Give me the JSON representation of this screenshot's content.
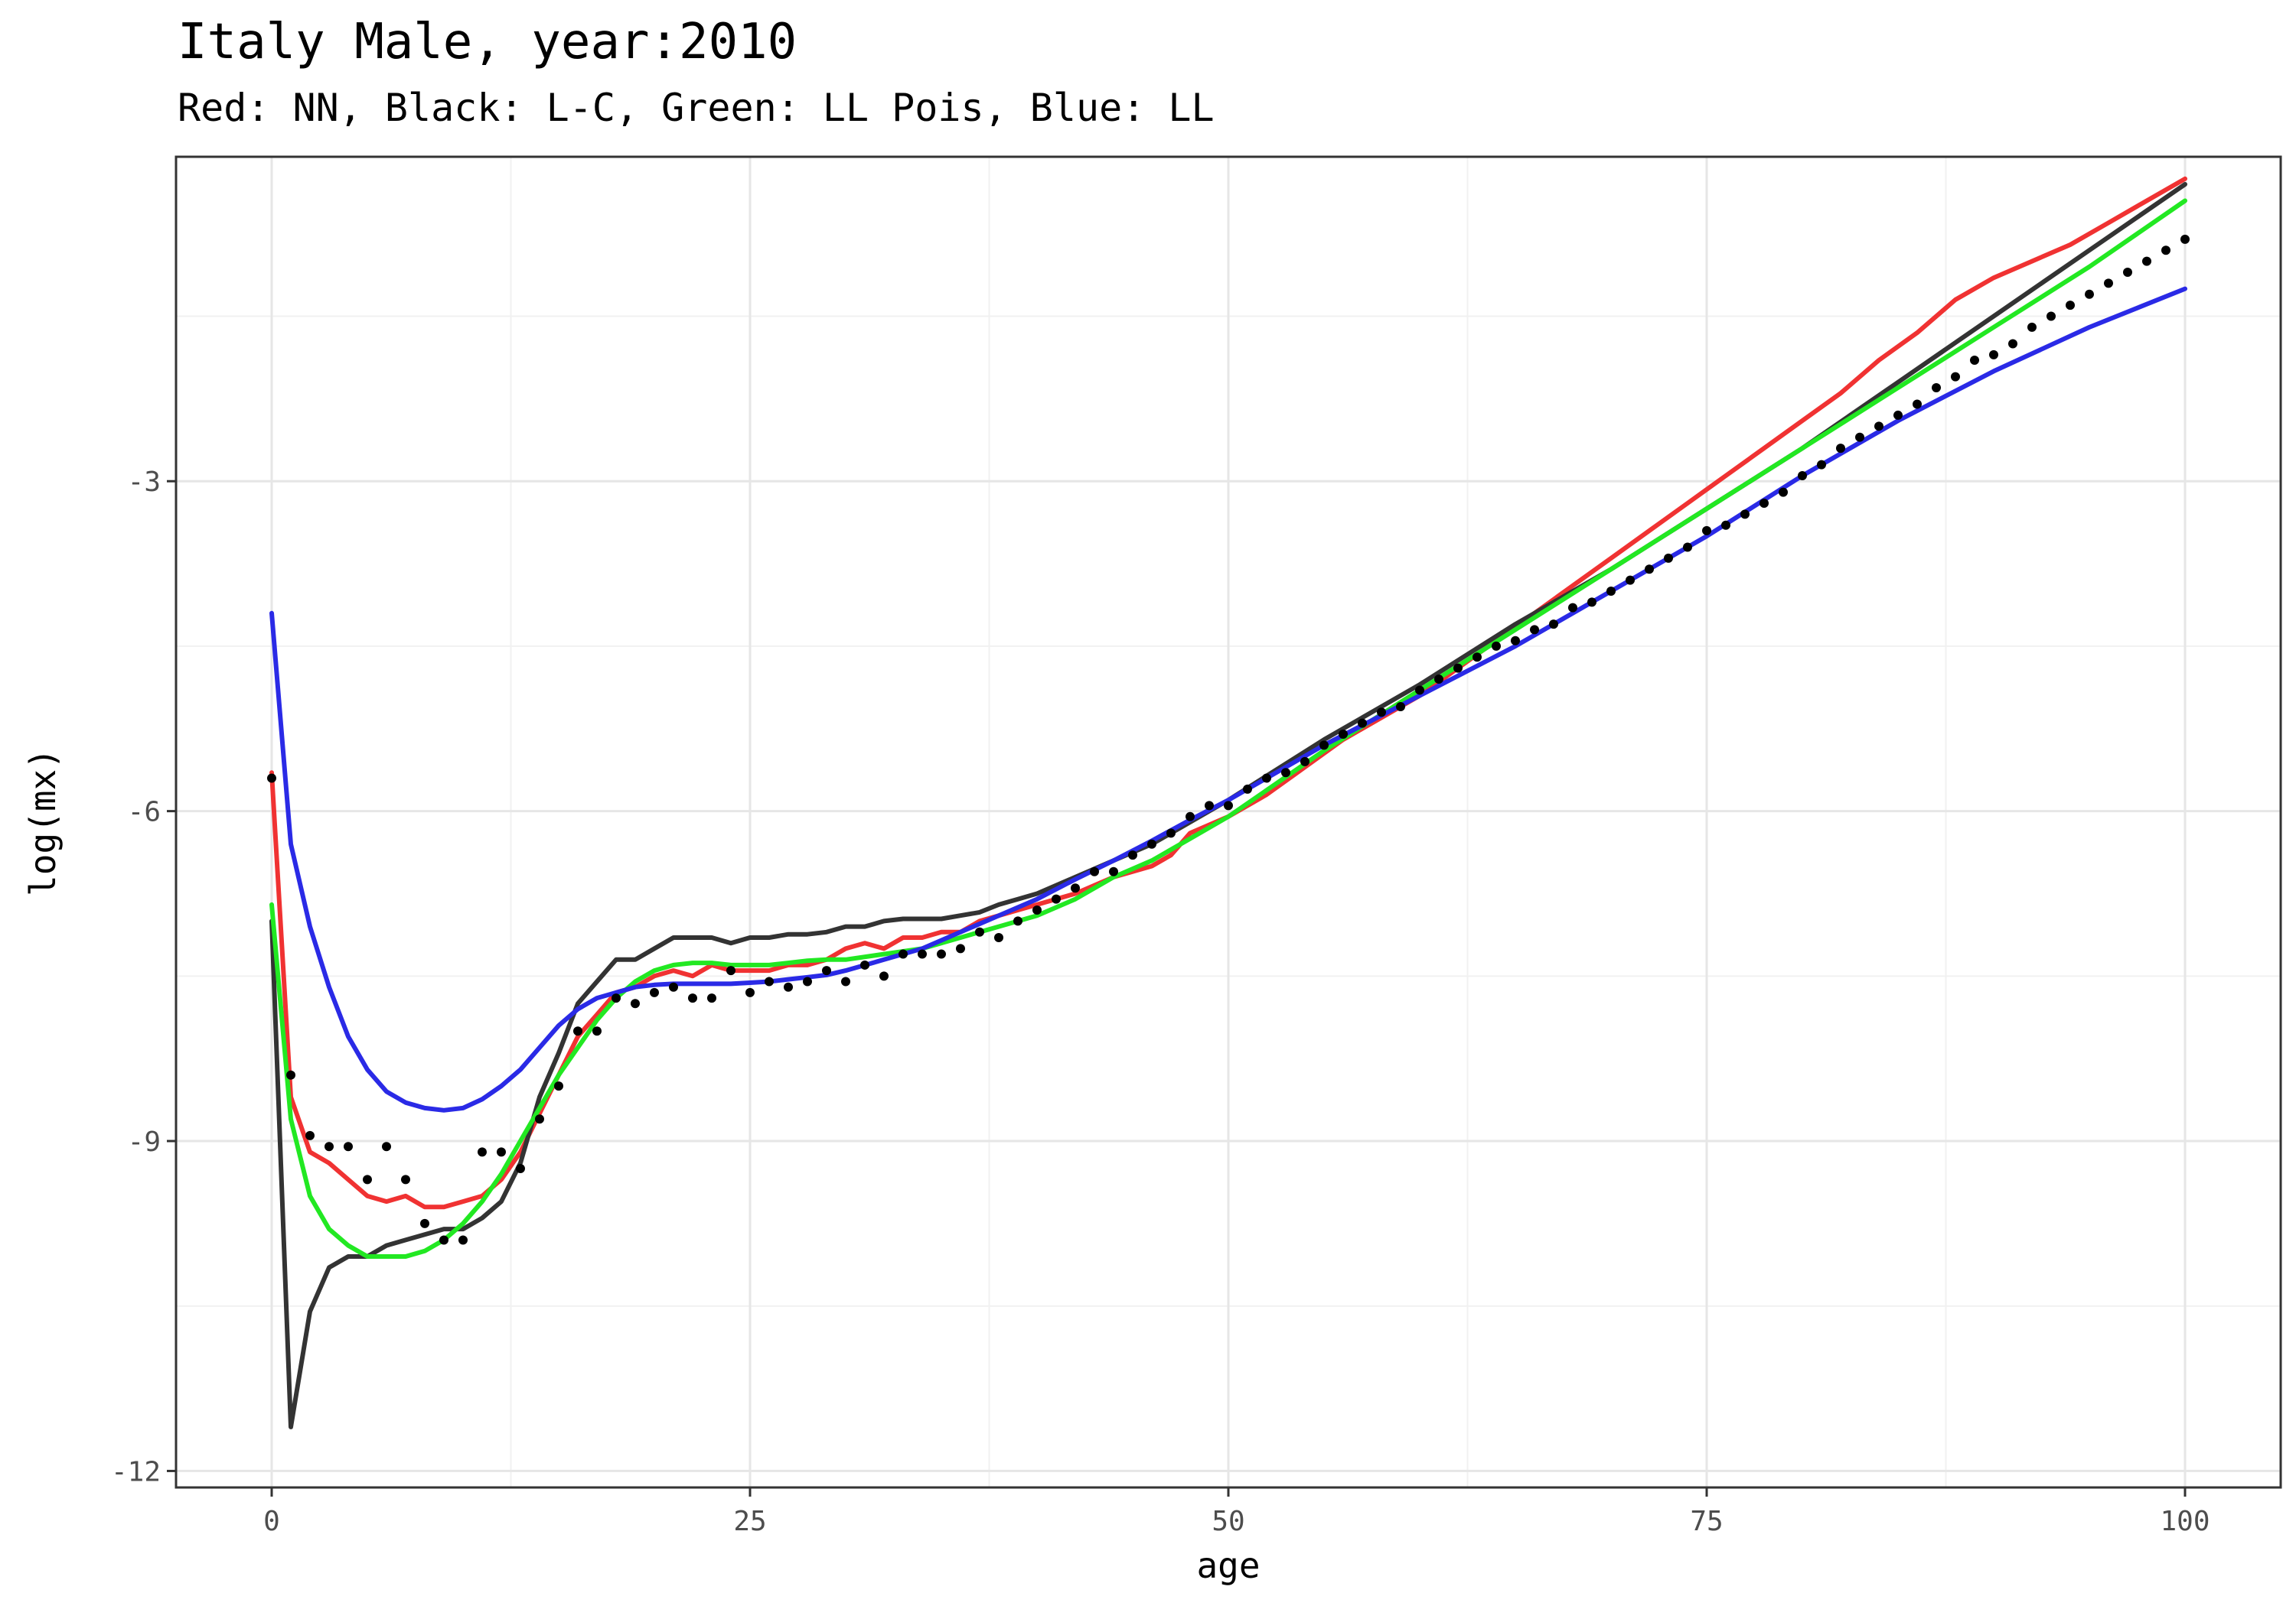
{
  "chart_data": {
    "type": "line",
    "title": "Italy Male, year:2010",
    "subtitle": "Red: NN, Black: L-C, Green: LL Pois, Blue: LL",
    "xlabel": "age",
    "ylabel": "log(mx)",
    "xlim": [
      -5,
      105
    ],
    "ylim": [
      -12.15,
      -0.05
    ],
    "x_ticks": [
      0,
      25,
      50,
      75,
      100
    ],
    "x_tick_labels": [
      "0",
      "25",
      "50",
      "75",
      "100"
    ],
    "y_ticks": [
      -12,
      -9,
      -6,
      -3
    ],
    "y_tick_labels": [
      "-12",
      "-9",
      "-6",
      "-3"
    ],
    "grid": true,
    "legend": "none",
    "colors": {
      "observed": "#000000",
      "NN": "#f03232",
      "L-C": "#333333",
      "LL Pois": "#22e822",
      "LL": "#2a2ae6"
    },
    "observed": {
      "x": [
        0,
        1,
        2,
        3,
        4,
        5,
        6,
        7,
        8,
        9,
        10,
        11,
        12,
        13,
        14,
        15,
        16,
        17,
        18,
        19,
        20,
        21,
        22,
        23,
        24,
        25,
        26,
        27,
        28,
        29,
        30,
        31,
        32,
        33,
        34,
        35,
        36,
        37,
        38,
        39,
        40,
        41,
        42,
        43,
        44,
        45,
        46,
        47,
        48,
        49,
        50,
        51,
        52,
        53,
        54,
        55,
        56,
        57,
        58,
        59,
        60,
        61,
        62,
        63,
        64,
        65,
        66,
        67,
        68,
        69,
        70,
        71,
        72,
        73,
        74,
        75,
        76,
        77,
        78,
        79,
        80,
        81,
        82,
        83,
        84,
        85,
        86,
        87,
        88,
        89,
        90,
        91,
        92,
        93,
        94,
        95,
        96,
        97,
        98,
        99,
        100
      ],
      "y": [
        -5.7,
        -8.4,
        -8.95,
        -9.05,
        -9.05,
        -9.35,
        -9.05,
        -9.35,
        -9.75,
        -9.9,
        -9.9,
        -9.1,
        -9.1,
        -9.25,
        -8.8,
        -8.5,
        -8.0,
        -8.0,
        -7.7,
        -7.75,
        -7.65,
        -7.6,
        -7.7,
        -7.7,
        -7.45,
        -7.65,
        -7.55,
        -7.6,
        -7.55,
        -7.45,
        -7.55,
        -7.4,
        -7.5,
        -7.3,
        -7.3,
        -7.3,
        -7.25,
        -7.1,
        -7.15,
        -7.0,
        -6.9,
        -6.8,
        -6.7,
        -6.55,
        -6.55,
        -6.4,
        -6.3,
        -6.2,
        -6.05,
        -5.95,
        -5.95,
        -5.8,
        -5.7,
        -5.65,
        -5.55,
        -5.4,
        -5.3,
        -5.2,
        -5.1,
        -5.05,
        -4.9,
        -4.8,
        -4.7,
        -4.6,
        -4.5,
        -4.45,
        -4.35,
        -4.3,
        -4.15,
        -4.1,
        -4.0,
        -3.9,
        -3.8,
        -3.7,
        -3.6,
        -3.45,
        -3.4,
        -3.3,
        -3.2,
        -3.1,
        -2.95,
        -2.85,
        -2.7,
        -2.6,
        -2.5,
        -2.4,
        -2.3,
        -2.15,
        -2.05,
        -1.9,
        -1.85,
        -1.75,
        -1.6,
        -1.5,
        -1.4,
        -1.3,
        -1.2,
        -1.1,
        -1.0,
        -0.9,
        -0.8
      ]
    },
    "series": [
      {
        "name": "NN",
        "x": [
          0,
          1,
          2,
          3,
          4,
          5,
          6,
          7,
          8,
          9,
          10,
          11,
          12,
          13,
          14,
          15,
          16,
          17,
          18,
          19,
          20,
          21,
          22,
          23,
          24,
          25,
          26,
          27,
          28,
          29,
          30,
          31,
          32,
          33,
          34,
          35,
          36,
          37,
          38,
          39,
          40,
          42,
          44,
          46,
          47,
          48,
          50,
          52,
          54,
          56,
          58,
          60,
          62,
          64,
          66,
          68,
          70,
          72,
          74,
          76,
          78,
          80,
          82,
          84,
          86,
          88,
          90,
          92,
          94,
          96,
          98,
          100
        ],
        "y": [
          -5.65,
          -8.6,
          -9.1,
          -9.2,
          -9.35,
          -9.5,
          -9.55,
          -9.5,
          -9.6,
          -9.6,
          -9.55,
          -9.5,
          -9.35,
          -9.1,
          -8.75,
          -8.4,
          -8.05,
          -7.85,
          -7.65,
          -7.6,
          -7.5,
          -7.45,
          -7.5,
          -7.4,
          -7.45,
          -7.45,
          -7.45,
          -7.4,
          -7.4,
          -7.35,
          -7.25,
          -7.2,
          -7.25,
          -7.15,
          -7.15,
          -7.1,
          -7.1,
          -7.0,
          -6.95,
          -6.9,
          -6.85,
          -6.75,
          -6.6,
          -6.5,
          -6.4,
          -6.2,
          -6.05,
          -5.85,
          -5.6,
          -5.35,
          -5.15,
          -4.95,
          -4.7,
          -4.45,
          -4.2,
          -3.95,
          -3.7,
          -3.45,
          -3.2,
          -2.95,
          -2.7,
          -2.45,
          -2.2,
          -1.9,
          -1.65,
          -1.35,
          -1.15,
          -1.0,
          -0.85,
          -0.65,
          -0.45,
          -0.25
        ]
      },
      {
        "name": "L-C",
        "x": [
          0,
          1,
          2,
          3,
          4,
          5,
          6,
          7,
          8,
          9,
          10,
          11,
          12,
          13,
          14,
          15,
          16,
          17,
          18,
          19,
          20,
          21,
          22,
          23,
          24,
          25,
          26,
          27,
          28,
          29,
          30,
          31,
          32,
          33,
          34,
          35,
          36,
          37,
          38,
          39,
          40,
          42,
          44,
          46,
          48,
          50,
          55,
          60,
          65,
          70,
          75,
          80,
          85,
          90,
          95,
          100
        ],
        "y": [
          -7.0,
          -11.6,
          -10.55,
          -10.15,
          -10.05,
          -10.05,
          -9.95,
          -9.9,
          -9.85,
          -9.8,
          -9.8,
          -9.7,
          -9.55,
          -9.2,
          -8.6,
          -8.2,
          -7.75,
          -7.55,
          -7.35,
          -7.35,
          -7.25,
          -7.15,
          -7.15,
          -7.15,
          -7.2,
          -7.15,
          -7.15,
          -7.12,
          -7.12,
          -7.1,
          -7.05,
          -7.05,
          -7.0,
          -6.98,
          -6.98,
          -6.98,
          -6.95,
          -6.92,
          -6.85,
          -6.8,
          -6.75,
          -6.6,
          -6.45,
          -6.3,
          -6.1,
          -5.9,
          -5.35,
          -4.85,
          -4.3,
          -3.8,
          -3.25,
          -2.7,
          -2.1,
          -1.5,
          -0.9,
          -0.3
        ]
      },
      {
        "name": "LL Pois",
        "x": [
          0,
          1,
          2,
          3,
          4,
          5,
          6,
          7,
          8,
          9,
          10,
          11,
          12,
          13,
          14,
          15,
          16,
          17,
          18,
          19,
          20,
          21,
          22,
          23,
          24,
          25,
          26,
          27,
          28,
          29,
          30,
          32,
          34,
          36,
          38,
          40,
          42,
          44,
          46,
          48,
          50,
          55,
          60,
          65,
          70,
          75,
          80,
          85,
          90,
          95,
          100
        ],
        "y": [
          -6.85,
          -8.8,
          -9.5,
          -9.8,
          -9.95,
          -10.05,
          -10.05,
          -10.05,
          -10.0,
          -9.9,
          -9.75,
          -9.55,
          -9.3,
          -9.0,
          -8.7,
          -8.4,
          -8.15,
          -7.9,
          -7.7,
          -7.55,
          -7.45,
          -7.4,
          -7.38,
          -7.38,
          -7.4,
          -7.4,
          -7.4,
          -7.38,
          -7.36,
          -7.35,
          -7.35,
          -7.3,
          -7.25,
          -7.15,
          -7.05,
          -6.95,
          -6.8,
          -6.6,
          -6.45,
          -6.25,
          -6.05,
          -5.45,
          -4.9,
          -4.35,
          -3.8,
          -3.25,
          -2.7,
          -2.15,
          -1.6,
          -1.05,
          -0.45
        ]
      },
      {
        "name": "LL",
        "x": [
          0,
          1,
          2,
          3,
          4,
          5,
          6,
          7,
          8,
          9,
          10,
          11,
          12,
          13,
          14,
          15,
          16,
          17,
          18,
          19,
          20,
          21,
          22,
          23,
          24,
          25,
          26,
          27,
          28,
          29,
          30,
          32,
          34,
          36,
          38,
          40,
          42,
          44,
          46,
          48,
          50,
          55,
          60,
          65,
          70,
          75,
          80,
          85,
          90,
          95,
          100
        ],
        "y": [
          -4.2,
          -6.3,
          -7.05,
          -7.6,
          -8.05,
          -8.35,
          -8.55,
          -8.65,
          -8.7,
          -8.72,
          -8.7,
          -8.62,
          -8.5,
          -8.35,
          -8.15,
          -7.95,
          -7.8,
          -7.7,
          -7.65,
          -7.6,
          -7.58,
          -7.57,
          -7.57,
          -7.57,
          -7.57,
          -7.56,
          -7.55,
          -7.53,
          -7.51,
          -7.49,
          -7.45,
          -7.35,
          -7.25,
          -7.1,
          -6.95,
          -6.8,
          -6.62,
          -6.45,
          -6.27,
          -6.08,
          -5.9,
          -5.4,
          -4.95,
          -4.5,
          -4.0,
          -3.5,
          -2.95,
          -2.45,
          -2.0,
          -1.6,
          -1.25
        ]
      }
    ]
  }
}
